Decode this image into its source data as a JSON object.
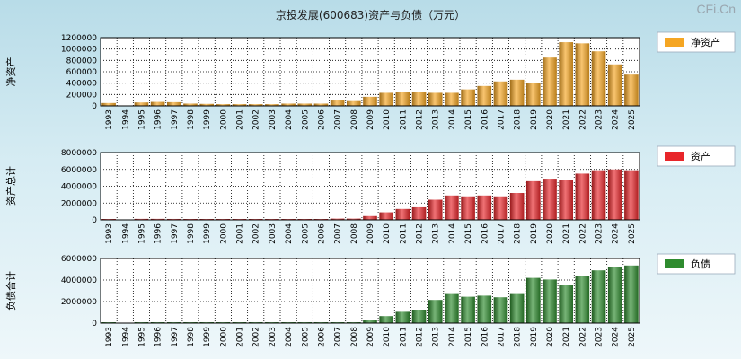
{
  "title": "京投发展(600683)资产与负债（万元）",
  "watermark": "CFi.Cn",
  "chart_data": [
    {
      "type": "bar",
      "ylabel": "净资产",
      "legend": "净资产",
      "color": "#f5a623",
      "ylim": [
        0,
        1200000
      ],
      "yticks": [
        0,
        200000,
        400000,
        600000,
        800000,
        1000000,
        1200000
      ],
      "categories": [
        "1993",
        "1994",
        "1995",
        "1996",
        "1997",
        "1998",
        "1999",
        "2000",
        "2001",
        "2002",
        "2003",
        "2004",
        "2005",
        "2006",
        "2007",
        "2008",
        "2009",
        "2010",
        "2011",
        "2012",
        "2013",
        "2014",
        "2015",
        "2016",
        "2017",
        "2018",
        "2019",
        "2020",
        "2021",
        "2022",
        "2023",
        "2024",
        "2025"
      ],
      "values": [
        50000,
        0,
        60000,
        70000,
        65000,
        40000,
        35000,
        30000,
        30000,
        30000,
        30000,
        40000,
        40000,
        40000,
        110000,
        100000,
        160000,
        230000,
        250000,
        240000,
        230000,
        230000,
        290000,
        350000,
        430000,
        460000,
        410000,
        850000,
        1120000,
        1100000,
        960000,
        730000,
        550000
      ]
    },
    {
      "type": "bar",
      "ylabel": "资产总计",
      "legend": "资产",
      "color": "#e8262a",
      "ylim": [
        0,
        8000000
      ],
      "yticks": [
        0,
        2000000,
        4000000,
        6000000,
        8000000
      ],
      "categories": [
        "1993",
        "1994",
        "1995",
        "1996",
        "1997",
        "1998",
        "1999",
        "2000",
        "2001",
        "2002",
        "2003",
        "2004",
        "2005",
        "2006",
        "2007",
        "2008",
        "2009",
        "2010",
        "2011",
        "2012",
        "2013",
        "2014",
        "2015",
        "2016",
        "2017",
        "2018",
        "2019",
        "2020",
        "2021",
        "2022",
        "2023",
        "2024",
        "2025"
      ],
      "values": [
        100000,
        0,
        120000,
        120000,
        110000,
        100000,
        90000,
        90000,
        90000,
        90000,
        90000,
        100000,
        100000,
        100000,
        150000,
        150000,
        450000,
        900000,
        1300000,
        1500000,
        2400000,
        2900000,
        2800000,
        2900000,
        2800000,
        3200000,
        4600000,
        4900000,
        4700000,
        5500000,
        5900000,
        6000000,
        5900000
      ]
    },
    {
      "type": "bar",
      "ylabel": "负债合计",
      "legend": "负债",
      "color": "#2e8b2e",
      "ylim": [
        0,
        6000000
      ],
      "yticks": [
        0,
        2000000,
        4000000,
        6000000
      ],
      "categories": [
        "1993",
        "1994",
        "1995",
        "1996",
        "1997",
        "1998",
        "1999",
        "2000",
        "2001",
        "2002",
        "2003",
        "2004",
        "2005",
        "2006",
        "2007",
        "2008",
        "2009",
        "2010",
        "2011",
        "2012",
        "2013",
        "2014",
        "2015",
        "2016",
        "2017",
        "2018",
        "2019",
        "2020",
        "2021",
        "2022",
        "2023",
        "2024",
        "2025"
      ],
      "values": [
        50000,
        0,
        50000,
        50000,
        50000,
        50000,
        50000,
        50000,
        50000,
        50000,
        50000,
        50000,
        50000,
        50000,
        50000,
        50000,
        300000,
        650000,
        1050000,
        1250000,
        2150000,
        2700000,
        2450000,
        2550000,
        2400000,
        2700000,
        4200000,
        4050000,
        3550000,
        4350000,
        4900000,
        5250000,
        5350000
      ]
    }
  ]
}
